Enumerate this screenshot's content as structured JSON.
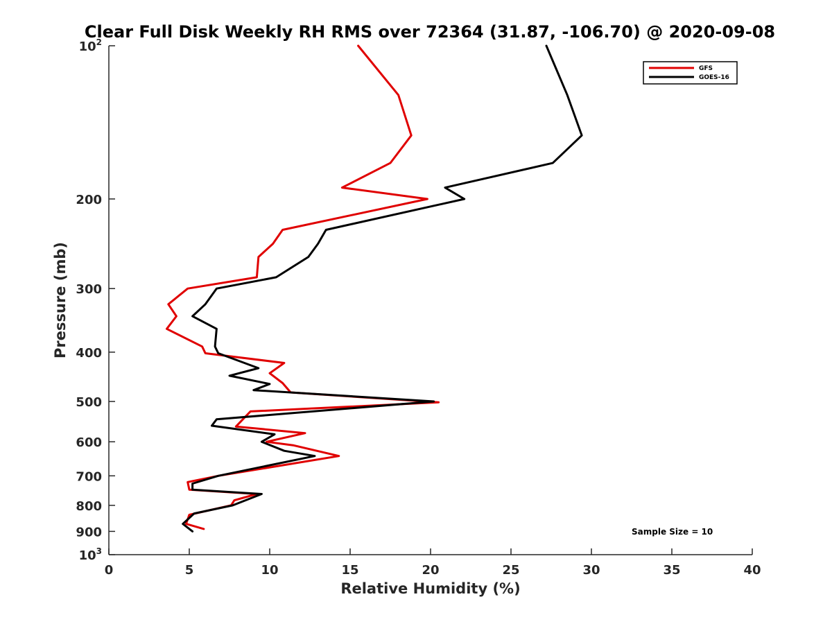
{
  "chart_data": {
    "type": "line",
    "title": "Clear Full Disk Weekly RH RMS over 72364 (31.87, -106.70) @ 2020-09-08",
    "xlabel": "Relative Humidity (%)",
    "ylabel": "Pressure (mb)",
    "xlim": [
      0,
      40
    ],
    "ylim": [
      100,
      1000
    ],
    "y_scale": "log",
    "y_reversed": true,
    "grid": false,
    "legend_position": "top-right",
    "x_ticks": [
      {
        "value": 0,
        "label": "0"
      },
      {
        "value": 5,
        "label": "5"
      },
      {
        "value": 10,
        "label": "10"
      },
      {
        "value": 15,
        "label": "15"
      },
      {
        "value": 20,
        "label": "20"
      },
      {
        "value": 25,
        "label": "25"
      },
      {
        "value": 30,
        "label": "30"
      },
      {
        "value": 35,
        "label": "35"
      },
      {
        "value": 40,
        "label": "40"
      }
    ],
    "y_ticks": [
      {
        "value": 100,
        "base": "10",
        "exp": "2"
      },
      {
        "value": 200,
        "base": "200",
        "exp": ""
      },
      {
        "value": 300,
        "base": "300",
        "exp": ""
      },
      {
        "value": 400,
        "base": "400",
        "exp": ""
      },
      {
        "value": 500,
        "base": "500",
        "exp": ""
      },
      {
        "value": 600,
        "base": "600",
        "exp": ""
      },
      {
        "value": 700,
        "base": "700",
        "exp": ""
      },
      {
        "value": 800,
        "base": "800",
        "exp": ""
      },
      {
        "value": 900,
        "base": "900",
        "exp": ""
      },
      {
        "value": 1000,
        "base": "10",
        "exp": "3"
      }
    ],
    "series": [
      {
        "name": "GFS",
        "color": "#e00000",
        "points": [
          [
            15.5,
            100
          ],
          [
            18.0,
            125
          ],
          [
            18.8,
            150
          ],
          [
            17.5,
            170
          ],
          [
            14.5,
            190
          ],
          [
            19.8,
            200
          ],
          [
            10.8,
            230
          ],
          [
            10.2,
            245
          ],
          [
            9.3,
            260
          ],
          [
            9.2,
            285
          ],
          [
            4.9,
            300
          ],
          [
            3.7,
            322
          ],
          [
            4.2,
            340
          ],
          [
            3.6,
            360
          ],
          [
            5.8,
            390
          ],
          [
            6.0,
            402
          ],
          [
            10.9,
            420
          ],
          [
            10.0,
            440
          ],
          [
            10.8,
            460
          ],
          [
            11.3,
            480
          ],
          [
            20.5,
            502
          ],
          [
            8.8,
            523
          ],
          [
            7.9,
            560
          ],
          [
            12.2,
            577
          ],
          [
            9.8,
            600
          ],
          [
            11.5,
            610
          ],
          [
            14.3,
            640
          ],
          [
            6.8,
            700
          ],
          [
            4.9,
            720
          ],
          [
            5.0,
            745
          ],
          [
            9.2,
            760
          ],
          [
            7.8,
            782
          ],
          [
            7.6,
            800
          ],
          [
            5.0,
            835
          ],
          [
            4.8,
            870
          ],
          [
            5.9,
            890
          ]
        ]
      },
      {
        "name": "GOES-16",
        "color": "#000000",
        "points": [
          [
            27.2,
            100
          ],
          [
            28.5,
            125
          ],
          [
            29.4,
            150
          ],
          [
            27.6,
            170
          ],
          [
            20.9,
            190
          ],
          [
            22.1,
            200
          ],
          [
            13.5,
            230
          ],
          [
            13.0,
            245
          ],
          [
            12.4,
            260
          ],
          [
            10.4,
            285
          ],
          [
            6.7,
            300
          ],
          [
            6.0,
            322
          ],
          [
            5.2,
            340
          ],
          [
            6.7,
            360
          ],
          [
            6.6,
            390
          ],
          [
            6.8,
            402
          ],
          [
            9.3,
            430
          ],
          [
            7.5,
            445
          ],
          [
            10.0,
            462
          ],
          [
            9.0,
            475
          ],
          [
            20.2,
            500
          ],
          [
            6.7,
            542
          ],
          [
            6.4,
            558
          ],
          [
            10.3,
            580
          ],
          [
            9.5,
            600
          ],
          [
            10.9,
            625
          ],
          [
            12.8,
            640
          ],
          [
            6.8,
            700
          ],
          [
            5.2,
            725
          ],
          [
            5.2,
            745
          ],
          [
            9.5,
            760
          ],
          [
            7.7,
            800
          ],
          [
            5.3,
            830
          ],
          [
            4.6,
            870
          ],
          [
            5.2,
            900
          ]
        ]
      }
    ],
    "annotation": "Sample Size = 10"
  }
}
